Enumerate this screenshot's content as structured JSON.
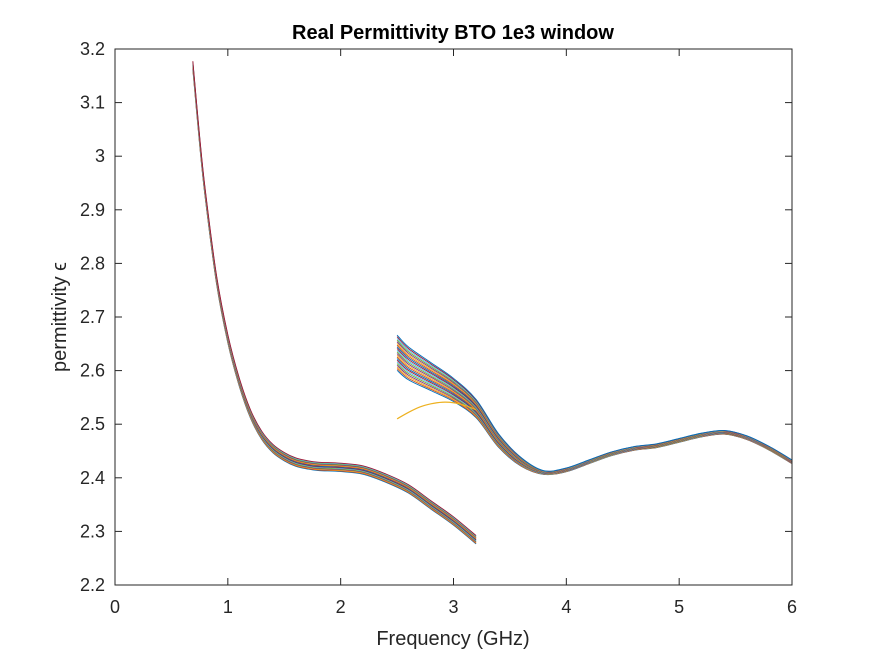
{
  "chart_data": {
    "type": "line",
    "title": "Real Permittivity BTO 1e3 window",
    "xlabel": "Frequency (GHz)",
    "ylabel": "permittivity ϵ",
    "xlim": [
      0,
      6
    ],
    "ylim": [
      2.2,
      3.2
    ],
    "xticks": [
      0,
      1,
      2,
      3,
      4,
      5,
      6
    ],
    "yticks": [
      2.2,
      2.3,
      2.4,
      2.5,
      2.6,
      2.7,
      2.8,
      2.9,
      3,
      3.1,
      3.2
    ],
    "xtick_labels": [
      "0",
      "1",
      "2",
      "3",
      "4",
      "5",
      "6"
    ],
    "ytick_labels": [
      "2.2",
      "2.3",
      "2.4",
      "2.5",
      "2.6",
      "2.7",
      "2.8",
      "2.9",
      "3",
      "3.1",
      "3.2"
    ],
    "grid": false,
    "legend": "none",
    "colors": [
      "#0072BD",
      "#D95319",
      "#EDB120",
      "#7E2F8E",
      "#77AC30",
      "#4DBEEE",
      "#A2142F"
    ],
    "segments": [
      {
        "x": [
          0.69,
          0.75,
          0.8,
          0.9,
          1.0,
          1.1,
          1.2,
          1.3,
          1.4,
          1.5,
          1.6,
          1.7,
          1.8,
          2.0,
          2.2,
          2.4,
          2.6,
          2.8,
          3.0,
          3.2
        ],
        "y": [
          3.17,
          3.03,
          2.93,
          2.77,
          2.66,
          2.58,
          2.52,
          2.48,
          2.455,
          2.44,
          2.43,
          2.425,
          2.422,
          2.42,
          2.415,
          2.4,
          2.38,
          2.35,
          2.32,
          2.285
        ]
      },
      {
        "x": [
          2.5,
          2.6,
          2.8,
          3.0,
          3.2,
          3.4,
          3.6,
          3.8,
          4.0,
          4.2,
          4.4,
          4.6,
          4.8,
          5.0,
          5.2,
          5.4,
          5.6,
          5.8,
          6.0
        ],
        "y": [
          2.635,
          2.615,
          2.59,
          2.565,
          2.53,
          2.47,
          2.43,
          2.41,
          2.415,
          2.43,
          2.445,
          2.455,
          2.46,
          2.47,
          2.48,
          2.485,
          2.475,
          2.455,
          2.43
        ]
      },
      {
        "x": [
          2.5,
          2.6,
          2.7,
          2.8,
          2.9,
          3.0,
          3.1,
          3.2
        ],
        "y": [
          2.51,
          2.522,
          2.532,
          2.538,
          2.541,
          2.54,
          2.535,
          2.527
        ]
      }
    ]
  }
}
